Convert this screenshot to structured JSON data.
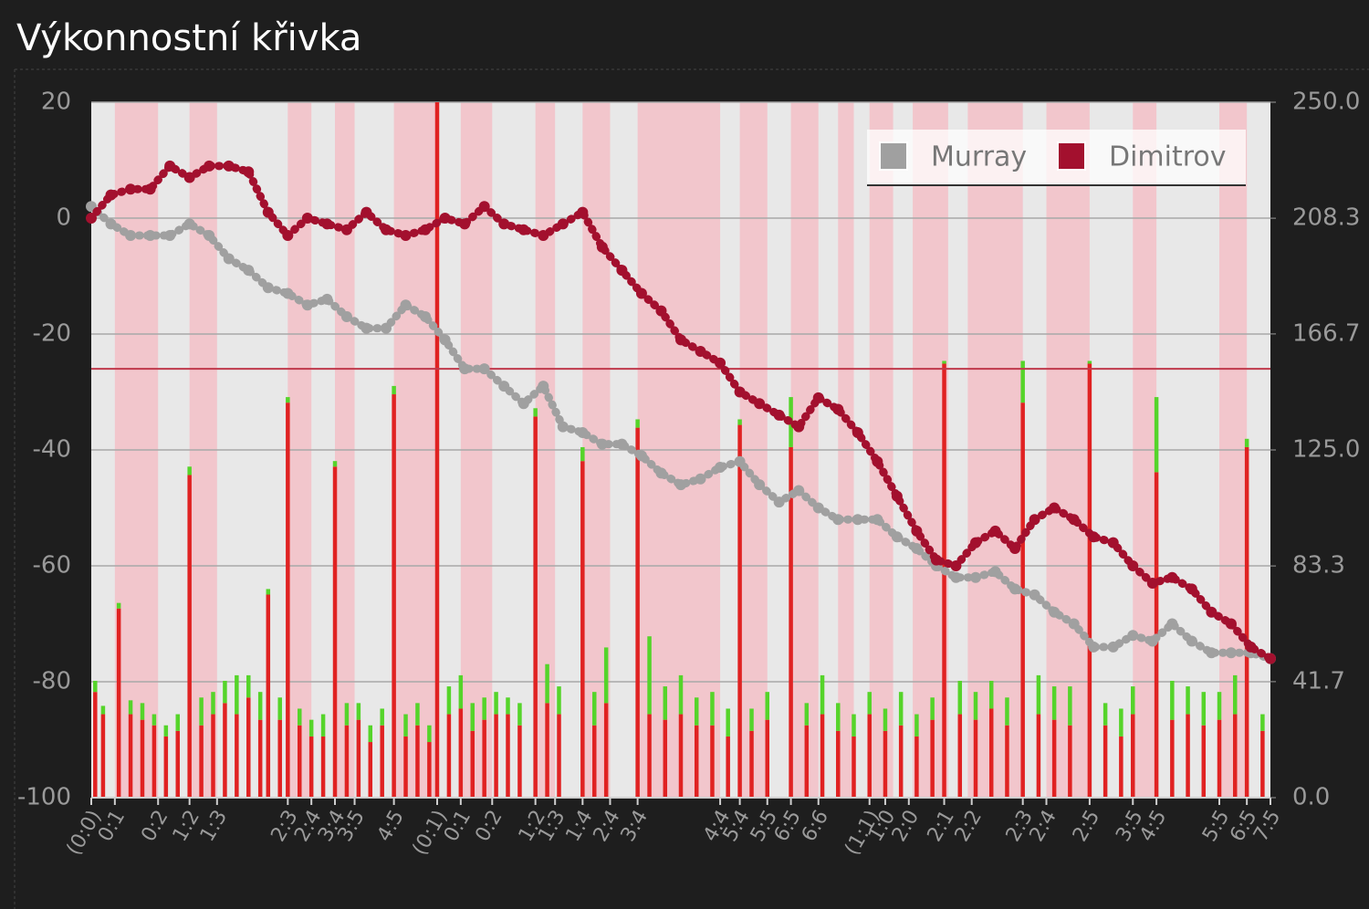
{
  "chart_data": {
    "type": "line",
    "title": "Výkonnostní křivka",
    "xlim": [
      0,
      300
    ],
    "xticks": [
      {
        "value": 0,
        "label": "(0:0)"
      },
      {
        "value": 6,
        "label": "0:1"
      },
      {
        "value": 17,
        "label": "0:2"
      },
      {
        "value": 25,
        "label": "1:2"
      },
      {
        "value": 32,
        "label": "1:3"
      },
      {
        "value": 50,
        "label": "2:3"
      },
      {
        "value": 56,
        "label": "2:4"
      },
      {
        "value": 62,
        "label": "3:4"
      },
      {
        "value": 67,
        "label": "3:5"
      },
      {
        "value": 77,
        "label": "4:5"
      },
      {
        "value": 88,
        "label": "(0:1)"
      },
      {
        "value": 94,
        "label": "0:1"
      },
      {
        "value": 102,
        "label": "0:2"
      },
      {
        "value": 113,
        "label": "1:2"
      },
      {
        "value": 118,
        "label": "1:3"
      },
      {
        "value": 125,
        "label": "1:4"
      },
      {
        "value": 132,
        "label": "2:4"
      },
      {
        "value": 139,
        "label": "3:4"
      },
      {
        "value": 160,
        "label": "4:4"
      },
      {
        "value": 165,
        "label": "5:4"
      },
      {
        "value": 172,
        "label": "5:5"
      },
      {
        "value": 178,
        "label": "6:5"
      },
      {
        "value": 185,
        "label": "6:6"
      },
      {
        "value": 198,
        "label": "(1:1)"
      },
      {
        "value": 202,
        "label": "1:0"
      },
      {
        "value": 208,
        "label": "2:0"
      },
      {
        "value": 217,
        "label": "2:1"
      },
      {
        "value": 224,
        "label": "2:2"
      },
      {
        "value": 237,
        "label": "2:3"
      },
      {
        "value": 243,
        "label": "2:4"
      },
      {
        "value": 254,
        "label": "2:5"
      },
      {
        "value": 265,
        "label": "3:5"
      },
      {
        "value": 271,
        "label": "4:5"
      },
      {
        "value": 287,
        "label": "5:5"
      },
      {
        "value": 294,
        "label": "6:5"
      },
      {
        "value": 300,
        "label": "7:5"
      }
    ],
    "ylim": [
      -100,
      20
    ],
    "yticks": [
      20,
      0,
      -20,
      -40,
      -60,
      -80,
      -100
    ],
    "y2lim": [
      0,
      250
    ],
    "y2ticks": [
      {
        "value": 250,
        "label": "250.0"
      },
      {
        "value": 208.3,
        "label": "208.3"
      },
      {
        "value": 166.7,
        "label": "166.7"
      },
      {
        "value": 125,
        "label": "125.0"
      },
      {
        "value": 83.3,
        "label": "83.3"
      },
      {
        "value": 41.7,
        "label": "41.7"
      },
      {
        "value": 0,
        "label": "0.0"
      }
    ],
    "grid": true,
    "legend": "upper right",
    "reference_y": -26,
    "reference_color": "#c0394b",
    "shaded_color": "#f2c6cc",
    "shaded_ranges": [
      [
        6,
        17
      ],
      [
        25,
        32
      ],
      [
        50,
        56
      ],
      [
        62,
        67
      ],
      [
        77,
        88
      ],
      [
        94,
        102
      ],
      [
        113,
        118
      ],
      [
        125,
        132
      ],
      [
        139,
        160
      ],
      [
        165,
        172
      ],
      [
        178,
        185
      ],
      [
        190,
        194
      ],
      [
        198,
        204
      ],
      [
        209,
        218
      ],
      [
        223,
        237
      ],
      [
        243,
        254
      ],
      [
        265,
        271
      ],
      [
        287,
        294
      ]
    ],
    "x": [
      0,
      5,
      10,
      15,
      20,
      25,
      30,
      35,
      40,
      45,
      50,
      55,
      60,
      65,
      70,
      75,
      80,
      85,
      90,
      95,
      100,
      105,
      110,
      115,
      120,
      125,
      130,
      135,
      140,
      145,
      150,
      155,
      160,
      165,
      170,
      175,
      180,
      185,
      190,
      195,
      200,
      205,
      210,
      215,
      220,
      225,
      230,
      235,
      240,
      245,
      250,
      255,
      260,
      265,
      270,
      275,
      280,
      285,
      290,
      295,
      300
    ],
    "series": [
      {
        "name": "Murray",
        "color": "#a0a0a0",
        "values": [
          2,
          -1,
          -3,
          -3,
          -3,
          -1,
          -3,
          -7,
          -9,
          -12,
          -13,
          -15,
          -14,
          -17,
          -19,
          -19,
          -15,
          -17,
          -21,
          -26,
          -26,
          -29,
          -32,
          -29,
          -36,
          -37,
          -39,
          -39,
          -41,
          -44,
          -46,
          -45,
          -43,
          -42,
          -46,
          -49,
          -47,
          -50,
          -52,
          -52,
          -52,
          -55,
          -57,
          -60,
          -62,
          -62,
          -61,
          -64,
          -65,
          -68,
          -70,
          -74,
          -74,
          -72,
          -73,
          -70,
          -73,
          -75,
          -75,
          -75,
          -76
        ]
      },
      {
        "name": "Dimitrov",
        "color": "#a3102e",
        "values": [
          0,
          4,
          5,
          5,
          9,
          7,
          9,
          9,
          8,
          1,
          -3,
          0,
          -1,
          -2,
          1,
          -2,
          -3,
          -2,
          0,
          -1,
          2,
          -1,
          -2,
          -3,
          -1,
          1,
          -5,
          -9,
          -13,
          -16,
          -21,
          -23,
          -25,
          -30,
          -32,
          -34,
          -36,
          -31,
          -33,
          -37,
          -42,
          -48,
          -54,
          -59,
          -60,
          -56,
          -54,
          -57,
          -52,
          -50,
          -52,
          -55,
          -56,
          -60,
          -63,
          -62,
          -64,
          -68,
          -70,
          -74,
          -76
        ]
      }
    ],
    "bars": {
      "x": [
        1,
        3,
        7,
        10,
        13,
        16,
        19,
        22,
        25,
        28,
        31,
        34,
        37,
        40,
        43,
        45,
        48,
        50,
        53,
        56,
        59,
        62,
        65,
        68,
        71,
        74,
        77,
        80,
        83,
        86,
        88,
        91,
        94,
        97,
        100,
        103,
        106,
        109,
        113,
        116,
        119,
        125,
        128,
        131,
        139,
        142,
        146,
        150,
        154,
        158,
        162,
        165,
        168,
        172,
        178,
        182,
        186,
        190,
        194,
        198,
        202,
        206,
        210,
        214,
        217,
        221,
        225,
        229,
        233,
        237,
        241,
        245,
        249,
        254,
        258,
        262,
        265,
        271,
        275,
        279,
        283,
        287,
        291,
        294,
        298
      ],
      "series": [
        {
          "color": "#e02222",
          "axis": "y2",
          "values": [
            38,
            30,
            68,
            30,
            28,
            26,
            22,
            24,
            116,
            26,
            30,
            34,
            30,
            36,
            28,
            73,
            28,
            142,
            26,
            22,
            22,
            119,
            26,
            28,
            20,
            26,
            145,
            22,
            26,
            20,
            250,
            30,
            32,
            24,
            28,
            30,
            30,
            26,
            137,
            34,
            30,
            121,
            26,
            34,
            133,
            30,
            28,
            30,
            26,
            26,
            22,
            134,
            24,
            28,
            126,
            26,
            30,
            24,
            22,
            30,
            24,
            26,
            22,
            28,
            156,
            30,
            28,
            32,
            26,
            142,
            30,
            28,
            26,
            156,
            26,
            22,
            30,
            117,
            28,
            30,
            26,
            28,
            30,
            126,
            24
          ]
        },
        {
          "color": "#55d42a",
          "axis": "y2",
          "values": [
            4,
            3,
            2,
            5,
            6,
            4,
            4,
            6,
            3,
            10,
            8,
            8,
            14,
            8,
            10,
            2,
            8,
            2,
            6,
            6,
            8,
            2,
            8,
            6,
            6,
            6,
            3,
            8,
            8,
            6,
            0,
            10,
            12,
            10,
            8,
            8,
            6,
            8,
            3,
            14,
            10,
            5,
            12,
            20,
            3,
            28,
            12,
            14,
            10,
            12,
            10,
            2,
            8,
            10,
            18,
            8,
            14,
            10,
            8,
            8,
            8,
            12,
            8,
            8,
            1,
            12,
            10,
            10,
            10,
            15,
            14,
            12,
            14,
            1,
            8,
            10,
            10,
            27,
            14,
            10,
            12,
            10,
            14,
            3,
            6
          ]
        }
      ]
    }
  }
}
